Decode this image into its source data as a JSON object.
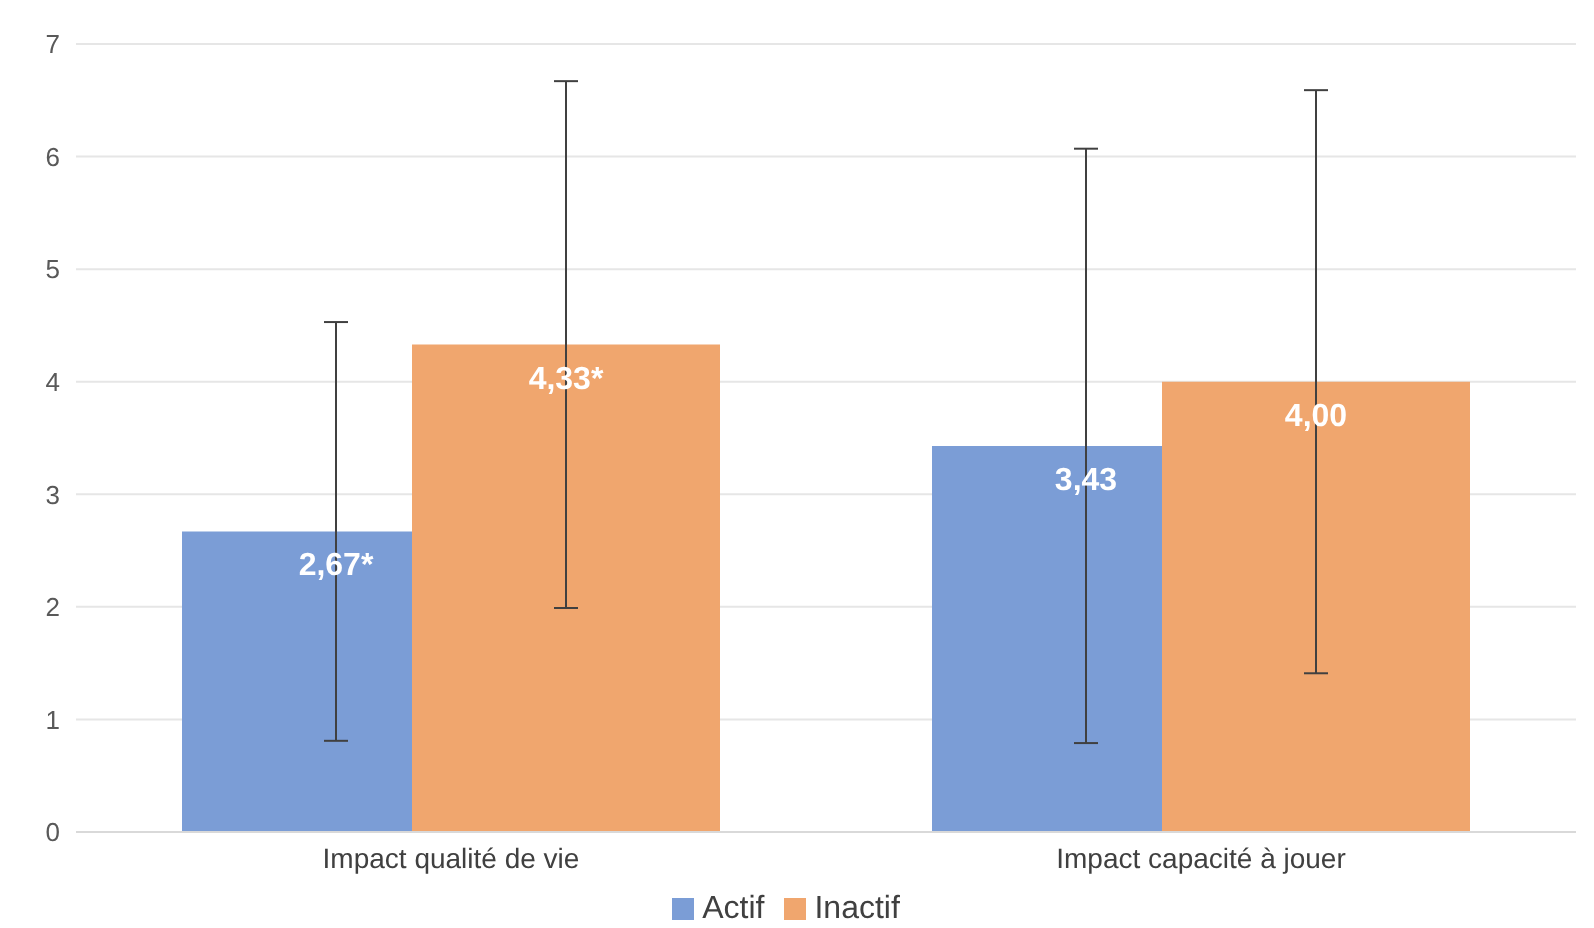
{
  "chart_data": {
    "type": "bar",
    "categories": [
      "Impact qualité de vie",
      "Impact capacité à jouer"
    ],
    "series": [
      {
        "name": "Actif",
        "color": "#7b9dd6",
        "values": [
          2.67,
          3.43
        ],
        "errors": [
          1.86,
          2.64
        ],
        "value_labels": [
          "2,67*",
          "3,43"
        ]
      },
      {
        "name": "Inactif",
        "color": "#f0a66e",
        "values": [
          4.33,
          4.0
        ],
        "errors": [
          2.34,
          2.59
        ],
        "value_labels": [
          "4,33*",
          "4,00"
        ]
      }
    ],
    "ylim": [
      0,
      7
    ],
    "yticks": [
      0,
      1,
      2,
      3,
      4,
      5,
      6,
      7
    ],
    "grid": "y",
    "legend": "bottom"
  }
}
